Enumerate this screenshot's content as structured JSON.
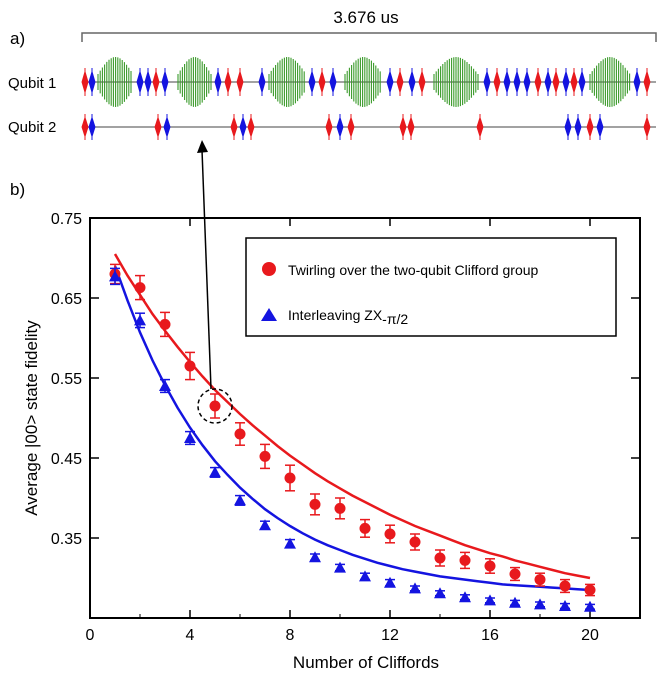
{
  "panel_a": {
    "label": "a)",
    "duration": "3.676 us",
    "qubit1_label": "Qubit 1",
    "qubit2_label": "Qubit 2"
  },
  "panel_b": {
    "label": "b)"
  },
  "chart_data": {
    "type": "scatter",
    "xlabel": "Number of Cliffords",
    "ylabel": "Average |00> state fidelity",
    "xlim": [
      0,
      22
    ],
    "ylim": [
      0.25,
      0.75
    ],
    "xticks": [
      0,
      4,
      8,
      12,
      16,
      20
    ],
    "yticks": [
      0.35,
      0.45,
      0.55,
      0.65,
      0.75
    ],
    "grid": false,
    "legend_position": "top-right",
    "highlight": {
      "series": 0,
      "x": 5,
      "note": "dashed circle with arrow to Qubit 2 pulse sequence"
    },
    "series": [
      {
        "name": "Twirling over the two-qubit Clifford group",
        "color": "#e8191d",
        "marker": "circle",
        "x": [
          1,
          2,
          3,
          4,
          5,
          6,
          7,
          8,
          9,
          10,
          11,
          12,
          13,
          14,
          15,
          16,
          17,
          18,
          19,
          20
        ],
        "y": [
          0.68,
          0.663,
          0.617,
          0.565,
          0.515,
          0.48,
          0.452,
          0.425,
          0.392,
          0.387,
          0.362,
          0.355,
          0.345,
          0.325,
          0.322,
          0.315,
          0.305,
          0.298,
          0.29,
          0.285
        ],
        "err": [
          0.012,
          0.015,
          0.015,
          0.017,
          0.015,
          0.014,
          0.015,
          0.016,
          0.013,
          0.013,
          0.011,
          0.011,
          0.01,
          0.01,
          0.01,
          0.009,
          0.008,
          0.008,
          0.008,
          0.007
        ],
        "fit_x": [
          1.0,
          1.5,
          2.0,
          2.5,
          3.0,
          3.5,
          4.0,
          4.5,
          5.0,
          5.5,
          6.0,
          6.5,
          7.0,
          7.5,
          8.0,
          8.5,
          9.0,
          9.5,
          10.0,
          10.5,
          11.0,
          11.5,
          12.0,
          12.5,
          13.0,
          13.5,
          14.0,
          14.5,
          15.0,
          15.5,
          16.0,
          16.5,
          17.0,
          17.5,
          18.0,
          18.5,
          19.0,
          19.5,
          20.0
        ],
        "fit_y": [
          0.705,
          0.678,
          0.654,
          0.63,
          0.609,
          0.589,
          0.57,
          0.552,
          0.535,
          0.52,
          0.505,
          0.491,
          0.478,
          0.465,
          0.453,
          0.442,
          0.431,
          0.421,
          0.412,
          0.403,
          0.395,
          0.387,
          0.379,
          0.372,
          0.365,
          0.359,
          0.353,
          0.347,
          0.341,
          0.336,
          0.331,
          0.327,
          0.322,
          0.318,
          0.314,
          0.31,
          0.306,
          0.303,
          0.3
        ]
      },
      {
        "name": "Interleaving ZX",
        "name_subscript": "-π/2",
        "color": "#1414e0",
        "marker": "triangle",
        "x": [
          1,
          2,
          3,
          4,
          5,
          6,
          7,
          8,
          9,
          10,
          11,
          12,
          13,
          14,
          15,
          16,
          17,
          18,
          19,
          20
        ],
        "y": [
          0.677,
          0.622,
          0.54,
          0.475,
          0.432,
          0.397,
          0.366,
          0.343,
          0.326,
          0.313,
          0.302,
          0.294,
          0.287,
          0.281,
          0.276,
          0.272,
          0.269,
          0.267,
          0.265,
          0.264
        ],
        "err": [
          0.01,
          0.009,
          0.008,
          0.008,
          0.006,
          0.006,
          0.005,
          0.005,
          0.004,
          0.004,
          0.004,
          0.004,
          0.003,
          0.003,
          0.003,
          0.003,
          0.003,
          0.003,
          0.003,
          0.003
        ],
        "fit_x": [
          1.0,
          1.5,
          2.0,
          2.5,
          3.0,
          3.5,
          4.0,
          4.5,
          5.0,
          5.5,
          6.0,
          6.5,
          7.0,
          7.5,
          8.0,
          8.5,
          9.0,
          9.5,
          10.0,
          10.5,
          11.0,
          11.5,
          12.0,
          12.5,
          13.0,
          13.5,
          14.0,
          14.5,
          15.0,
          15.5,
          16.0,
          16.5,
          17.0,
          17.5,
          18.0,
          18.5,
          19.0,
          19.5,
          20.0
        ],
        "fit_y": [
          0.69,
          0.647,
          0.607,
          0.572,
          0.541,
          0.513,
          0.488,
          0.466,
          0.446,
          0.429,
          0.413,
          0.399,
          0.386,
          0.375,
          0.365,
          0.356,
          0.348,
          0.341,
          0.335,
          0.329,
          0.324,
          0.319,
          0.315,
          0.311,
          0.308,
          0.305,
          0.302,
          0.3,
          0.298,
          0.296,
          0.294,
          0.292,
          0.291,
          0.29,
          0.289,
          0.288,
          0.287,
          0.286,
          0.285
        ]
      }
    ]
  }
}
